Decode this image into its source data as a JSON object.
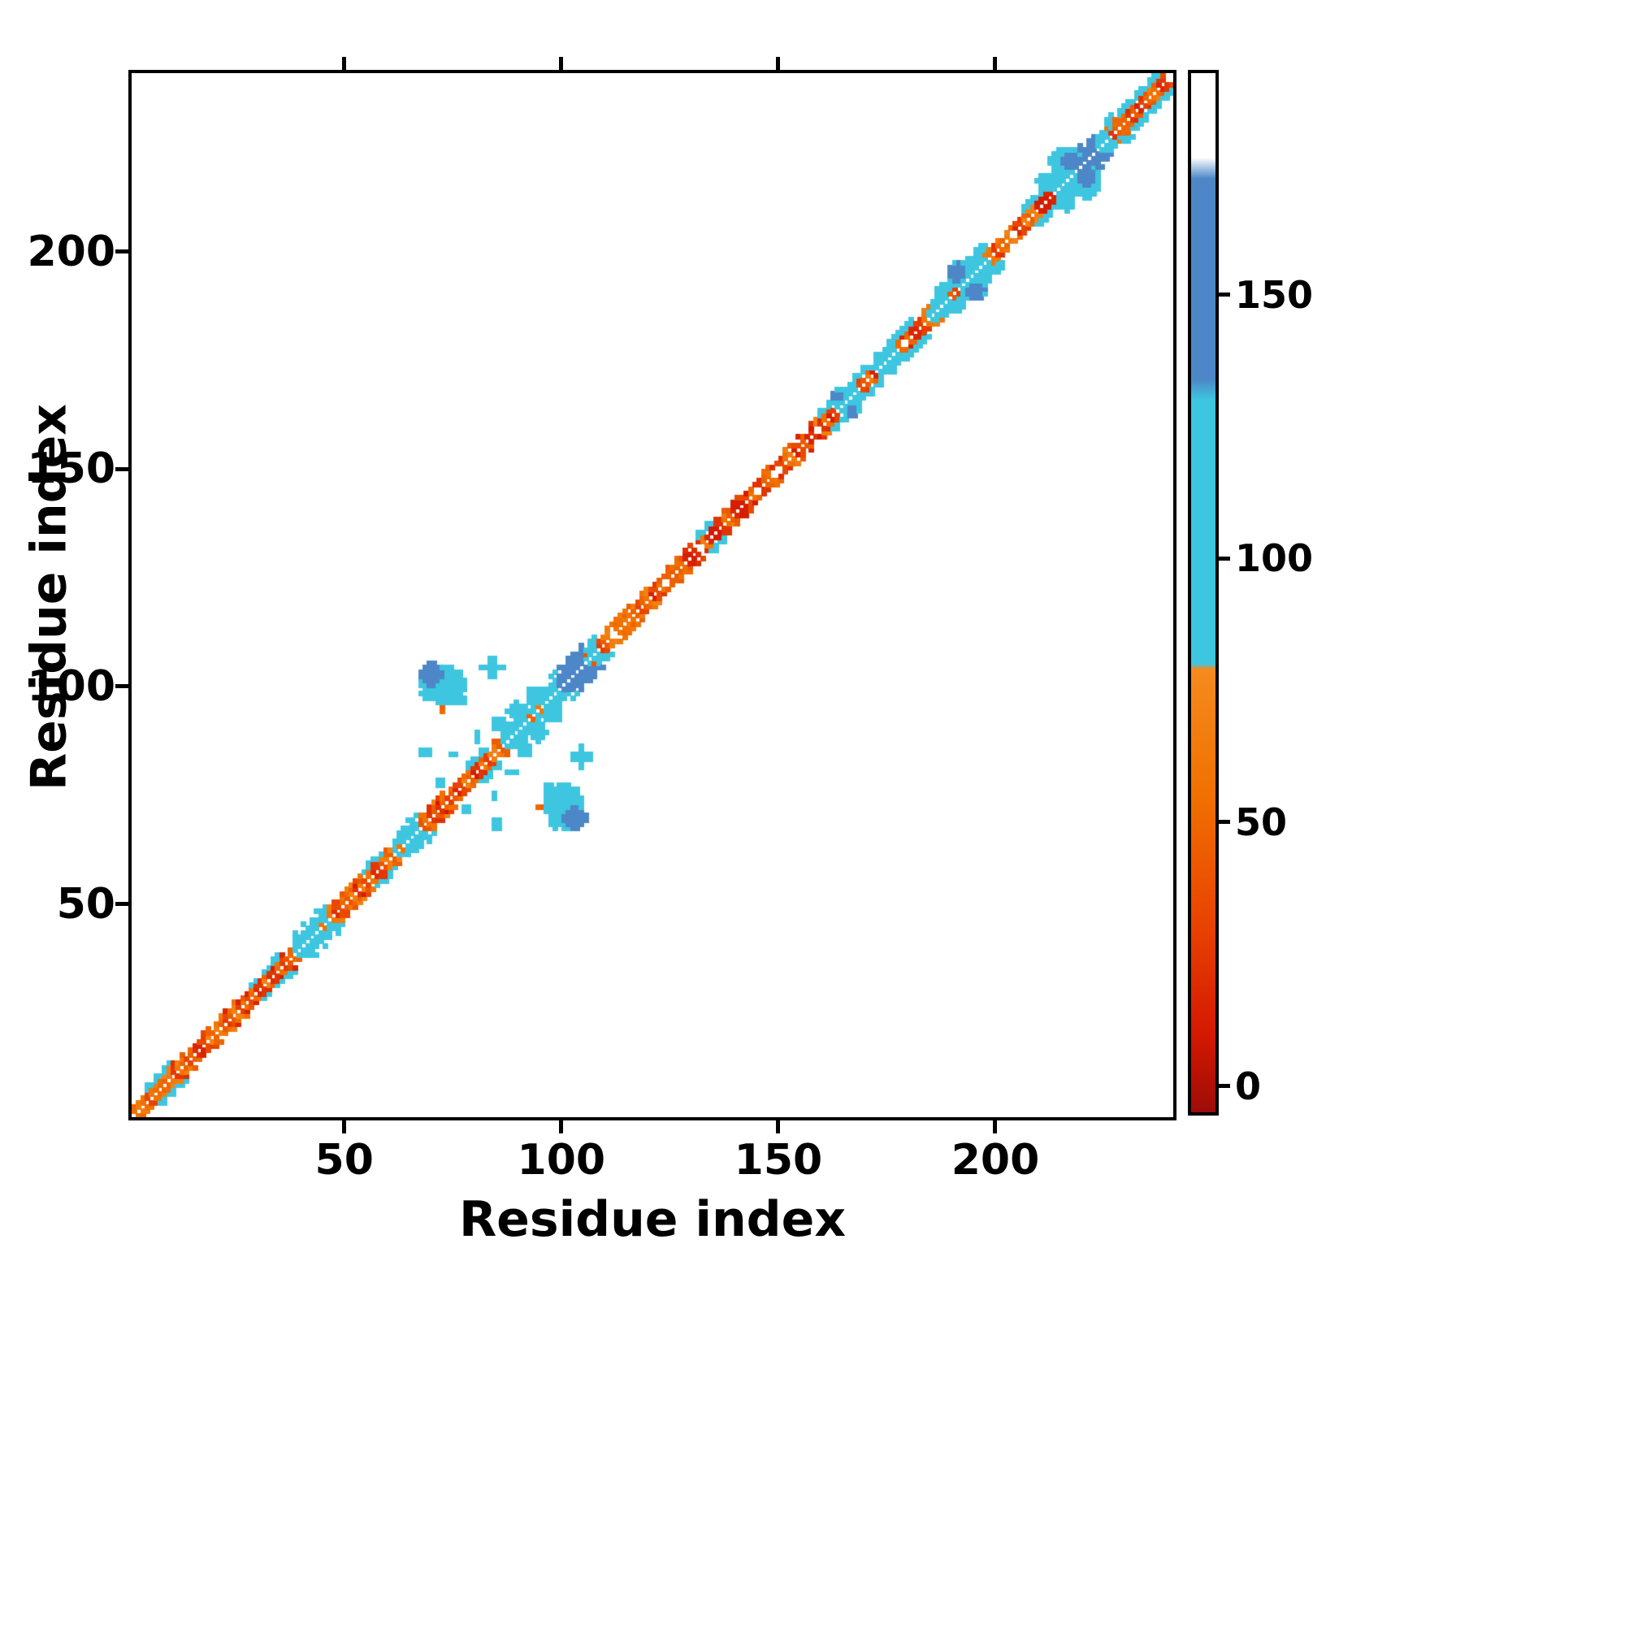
{
  "chart_data": {
    "type": "heatmap",
    "title": "",
    "xlabel": "Residue index",
    "ylabel": "Residue index",
    "xlim": [
      1,
      241
    ],
    "ylim": [
      1,
      241
    ],
    "x_ticks": [
      50,
      100,
      150,
      200
    ],
    "y_ticks": [
      50,
      100,
      150,
      200
    ],
    "grid": false,
    "n_residues": 240,
    "background": "#ffffff",
    "frame_color": "#000000",
    "colorbar": {
      "position": "right",
      "ticks": [
        0,
        50,
        100,
        150
      ],
      "vmin": -5,
      "vmax": 192,
      "stops": [
        {
          "v": -5,
          "color": "#9e0c08"
        },
        {
          "v": 10,
          "color": "#d41900"
        },
        {
          "v": 30,
          "color": "#e84200"
        },
        {
          "v": 55,
          "color": "#f07000"
        },
        {
          "v": 79,
          "color": "#f58a1e"
        },
        {
          "v": 80,
          "color": "#3ec6e0"
        },
        {
          "v": 130,
          "color": "#3ec6e0"
        },
        {
          "v": 134,
          "color": "#4d87c7"
        },
        {
          "v": 172,
          "color": "#4d87c7"
        },
        {
          "v": 176,
          "color": "#ffffff"
        },
        {
          "v": 192,
          "color": "#ffffff"
        }
      ]
    },
    "diagonal_band": {
      "half_width": 3,
      "description": "near-diagonal contacts |i-j| <= 3-5, red/orange low values with cyan/blue high-value segments",
      "segments": [
        {
          "start": 4,
          "end": 9,
          "mode": "edge",
          "value": 100
        },
        {
          "start": 28,
          "end": 34,
          "mode": "edge",
          "value": 100
        },
        {
          "start": 38,
          "end": 45,
          "mode": "full",
          "value": 100
        },
        {
          "start": 54,
          "end": 58,
          "mode": "edge",
          "value": 100
        },
        {
          "start": 61,
          "end": 66,
          "mode": "full",
          "value": 100
        },
        {
          "start": 78,
          "end": 82,
          "mode": "edge",
          "value": 100
        },
        {
          "start": 86,
          "end": 93,
          "mode": "full",
          "value": 100
        },
        {
          "start": 95,
          "end": 107,
          "mode": "full",
          "value": 100
        },
        {
          "start": 99,
          "end": 104,
          "mode": "full",
          "value": 152
        },
        {
          "start": 131,
          "end": 134,
          "mode": "edge",
          "value": 100
        },
        {
          "start": 158,
          "end": 181,
          "mode": "edge",
          "value": 100
        },
        {
          "start": 163,
          "end": 167,
          "mode": "full",
          "value": 100
        },
        {
          "start": 171,
          "end": 176,
          "mode": "full",
          "value": 100
        },
        {
          "start": 184,
          "end": 190,
          "mode": "full",
          "value": 100
        },
        {
          "start": 192,
          "end": 197,
          "mode": "full",
          "value": 100
        },
        {
          "start": 206,
          "end": 212,
          "mode": "edge",
          "value": 100
        },
        {
          "start": 213,
          "end": 226,
          "mode": "full",
          "value": 100
        },
        {
          "start": 216,
          "end": 222,
          "mode": "full",
          "value": 152
        },
        {
          "start": 228,
          "end": 239,
          "mode": "edge",
          "value": 100
        }
      ]
    },
    "off_diagonal_contacts": [
      {
        "x": 72,
        "y": 100,
        "rx": 5.0,
        "ry": 4.2,
        "v": 103
      },
      {
        "x": 69.5,
        "y": 102.5,
        "rx": 2.6,
        "ry": 2.4,
        "v": 152
      },
      {
        "x": 75.5,
        "y": 96.5,
        "rx": 1.7,
        "ry": 1.5,
        "v": 103
      },
      {
        "x": 72,
        "y": 94.5,
        "rx": 1.0,
        "ry": 0.9,
        "v": 50
      },
      {
        "x": 83.5,
        "y": 104,
        "rx": 2.6,
        "ry": 0.8,
        "v": 103
      },
      {
        "x": 83.5,
        "y": 104,
        "rx": 0.8,
        "ry": 2.6,
        "v": 103
      },
      {
        "x": 68,
        "y": 84.5,
        "rx": 1.7,
        "ry": 0.7,
        "v": 103
      },
      {
        "x": 74.5,
        "y": 84,
        "rx": 0.8,
        "ry": 0.8,
        "v": 103
      },
      {
        "x": 80,
        "y": 88,
        "rx": 0.8,
        "ry": 1.6,
        "v": 103
      },
      {
        "x": 85,
        "y": 91,
        "rx": 1.5,
        "ry": 1.5,
        "v": 103
      },
      {
        "x": 89,
        "y": 94,
        "rx": 2.0,
        "ry": 2.0,
        "v": 103
      },
      {
        "x": 93,
        "y": 97.5,
        "rx": 1.8,
        "ry": 1.8,
        "v": 103
      },
      {
        "x": 77.5,
        "y": 71.5,
        "rx": 0.9,
        "ry": 0.9,
        "v": 103
      },
      {
        "x": 163,
        "y": 166.5,
        "rx": 1.4,
        "ry": 1.4,
        "v": 152
      },
      {
        "x": 191.5,
        "y": 194.5,
        "rx": 3.0,
        "ry": 2.5,
        "v": 103
      },
      {
        "x": 190.5,
        "y": 195,
        "rx": 1.9,
        "ry": 1.9,
        "v": 152
      },
      {
        "x": 188,
        "y": 191.5,
        "rx": 1.2,
        "ry": 1.2,
        "v": 103
      },
      {
        "x": 211.5,
        "y": 215.5,
        "rx": 2.4,
        "ry": 1.8,
        "v": 103
      },
      {
        "x": 216,
        "y": 220,
        "rx": 4.0,
        "ry": 3.2,
        "v": 103
      },
      {
        "x": 217,
        "y": 220.5,
        "rx": 2.4,
        "ry": 2.0,
        "v": 152
      }
    ]
  }
}
